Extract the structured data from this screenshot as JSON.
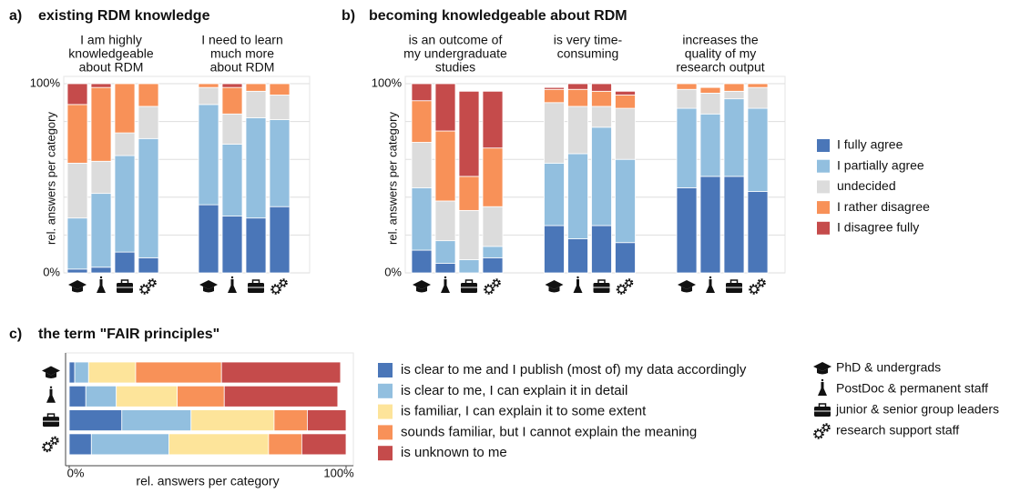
{
  "respondent_groups": [
    "PhD & undergrads",
    "PostDoc & permanent staff",
    "junior & senior group leaders",
    "research support staff"
  ],
  "chart_data": [
    {
      "type": "bar",
      "stacked": true,
      "label": "a)",
      "title": "existing RDM knowledge",
      "ylabel": "rel. answers per category",
      "ylim": [
        0,
        100
      ],
      "yticks": [
        {
          "value": 0,
          "label": "0%"
        },
        {
          "value": 100,
          "label": "100%"
        }
      ],
      "minor_yticks": [
        20,
        40,
        60,
        80
      ],
      "grid": true,
      "statements": [
        [
          "I am highly",
          "knowledgeable",
          "about RDM"
        ],
        [
          "I need to learn",
          "much more",
          "about RDM"
        ]
      ],
      "series": [
        {
          "color": "#4a76b8",
          "values": [
            [
              2,
              3,
              11,
              8
            ],
            [
              36,
              30,
              29,
              35
            ]
          ]
        },
        {
          "color": "#92bfdf",
          "values": [
            [
              27,
              39,
              51,
              63
            ],
            [
              53,
              38,
              53,
              46
            ]
          ]
        },
        {
          "color": "#dcdcdc",
          "values": [
            [
              29,
              17,
              12,
              17
            ],
            [
              9,
              16,
              14,
              13
            ]
          ]
        },
        {
          "color": "#f89158",
          "values": [
            [
              31,
              39,
              26,
              12
            ],
            [
              2,
              14,
              4,
              6
            ]
          ]
        },
        {
          "color": "#c54b4b",
          "values": [
            [
              11,
              2,
              0,
              0
            ],
            [
              0,
              2,
              0,
              0
            ]
          ]
        }
      ]
    },
    {
      "type": "bar",
      "stacked": true,
      "label": "b)",
      "title": "becoming knowledgeable about RDM",
      "ylabel": "rel. answers per category",
      "ylim": [
        0,
        100
      ],
      "yticks": [
        {
          "value": 0,
          "label": "0%"
        },
        {
          "value": 100,
          "label": "100%"
        }
      ],
      "minor_yticks": [
        20,
        40,
        60,
        80
      ],
      "grid": true,
      "statements": [
        [
          "is an outcome of",
          "my undergraduate",
          "studies"
        ],
        [
          "is very time-",
          "consuming"
        ],
        [
          "increases the",
          "quality of my",
          "research output"
        ]
      ],
      "series": [
        {
          "name": "I fully agree",
          "color": "#4a76b8",
          "values": [
            [
              12,
              5,
              0,
              8
            ],
            [
              25,
              18,
              25,
              16
            ],
            [
              45,
              51,
              51,
              43
            ]
          ]
        },
        {
          "name": "I partially agree",
          "color": "#92bfdf",
          "values": [
            [
              33,
              12,
              7,
              6
            ],
            [
              33,
              45,
              52,
              44
            ],
            [
              42,
              33,
              41,
              44
            ]
          ]
        },
        {
          "name": "undecided",
          "color": "#dcdcdc",
          "values": [
            [
              24,
              21,
              26,
              21
            ],
            [
              32,
              25,
              11,
              27
            ],
            [
              10,
              11,
              4,
              11
            ]
          ]
        },
        {
          "name": "I rather disagree",
          "color": "#f89158",
          "values": [
            [
              22,
              37,
              18,
              31
            ],
            [
              7,
              9,
              8,
              7
            ],
            [
              3,
              3,
              4,
              2
            ]
          ]
        },
        {
          "name": "I disagree fully",
          "color": "#c54b4b",
          "values": [
            [
              9,
              25,
              45,
              30
            ],
            [
              1,
              3,
              4,
              2
            ],
            [
              0,
              0,
              0,
              0
            ]
          ]
        }
      ]
    },
    {
      "type": "barh",
      "stacked": true,
      "label": "c)",
      "title": "the term \"FAIR principles\"",
      "xlabel": "rel. answers per category",
      "xlim": [
        0,
        100
      ],
      "xticks": [
        {
          "value": 0,
          "label": "0%"
        },
        {
          "value": 100,
          "label": "100%"
        }
      ],
      "series": [
        {
          "name": "is clear to me and I publish (most of) my data accordingly",
          "color": "#4a76b8",
          "values": [
            2,
            6,
            19,
            8
          ]
        },
        {
          "name": "is clear to me, I can explain it in detail",
          "color": "#92bfdf",
          "values": [
            5,
            11,
            25,
            28
          ]
        },
        {
          "name": "is familiar, I can explain it to some extent",
          "color": "#fde49a",
          "values": [
            17,
            22,
            30,
            36
          ]
        },
        {
          "name": "sounds familiar, but I cannot explain the meaning",
          "color": "#f89158",
          "values": [
            31,
            17,
            12,
            12
          ]
        },
        {
          "name": "is unknown to me",
          "color": "#c54b4b",
          "values": [
            43,
            41,
            14,
            16
          ]
        }
      ]
    }
  ]
}
